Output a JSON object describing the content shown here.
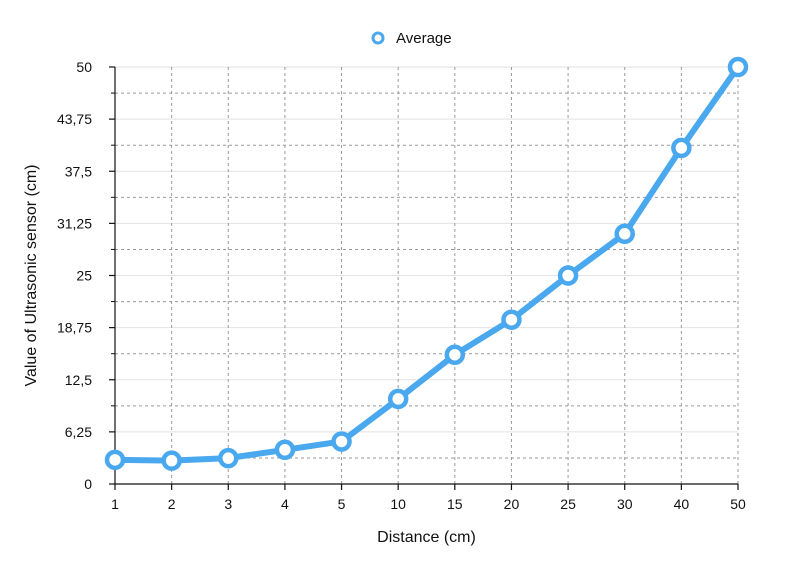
{
  "chart_data": {
    "type": "line",
    "title": "",
    "xlabel": "Distance (cm)",
    "ylabel": "Value of Ultrasonic sensor (cm)",
    "categories": [
      "1",
      "2",
      "3",
      "4",
      "5",
      "10",
      "15",
      "20",
      "25",
      "30",
      "40",
      "50"
    ],
    "series": [
      {
        "name": "Average",
        "color": "#4aa8ee",
        "values": [
          2.9,
          2.8,
          3.1,
          4.1,
          5.1,
          10.2,
          15.5,
          19.7,
          25.0,
          30.0,
          40.3,
          50.0
        ]
      }
    ],
    "ylim": [
      0,
      50
    ],
    "yticks": [
      0,
      6.25,
      12.5,
      18.75,
      25,
      31.25,
      37.5,
      43.75,
      50
    ],
    "ytick_labels": [
      "0",
      "6,25",
      "12,5",
      "18,75",
      "25",
      "31,25",
      "37,5",
      "43,75",
      "50"
    ],
    "grid": true,
    "legend_position": "top-center"
  }
}
